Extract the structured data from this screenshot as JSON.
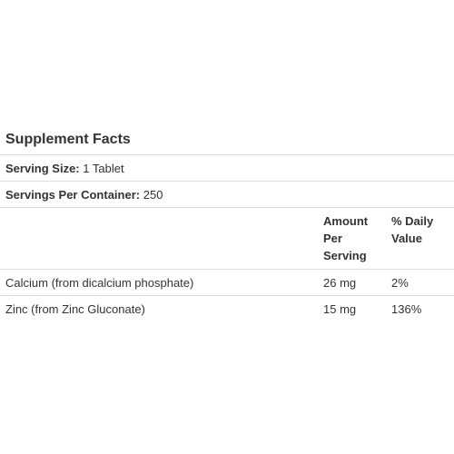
{
  "facts": {
    "title": "Supplement Facts",
    "serving_size": {
      "label": "Serving Size:",
      "value": "1 Tablet"
    },
    "servings_per_container": {
      "label": "Servings Per Container:",
      "value": "250"
    },
    "columns": {
      "amount_lines": [
        "Amount",
        "Per",
        "Serving"
      ],
      "daily_value_lines": [
        "% Daily",
        "Value"
      ]
    },
    "nutrients": [
      {
        "name": "Calcium (from dicalcium phosphate)",
        "amount": "26 mg",
        "daily_value": "2%"
      },
      {
        "name": "Zinc (from Zinc Gluconate)",
        "amount": "15 mg",
        "daily_value": "136%"
      }
    ]
  },
  "colors": {
    "text": "#333333",
    "divider": "#dddddd",
    "background": "#ffffff"
  }
}
